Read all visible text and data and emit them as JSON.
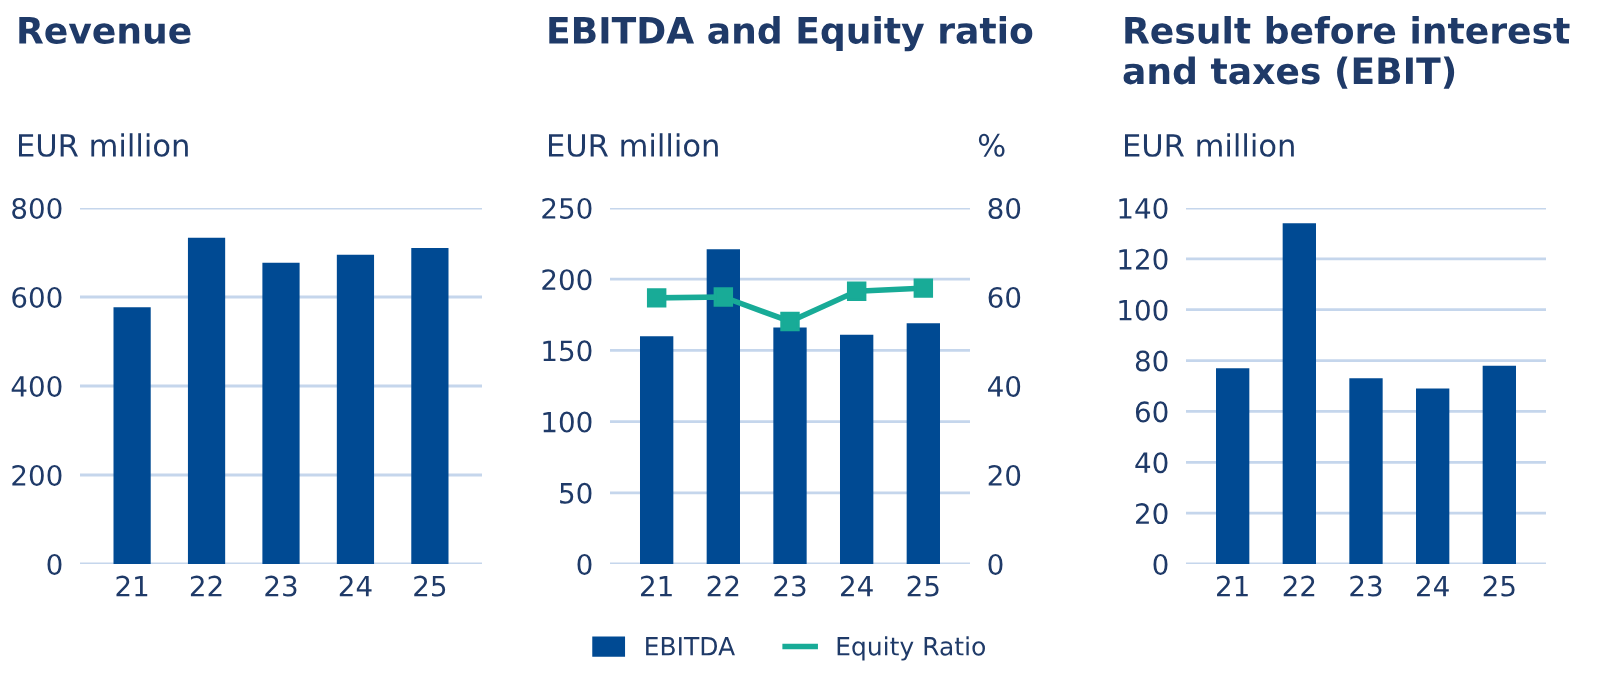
{
  "chart_data": [
    {
      "type": "bar",
      "title": "Revenue",
      "ylabel": "EUR million",
      "categories": [
        "21",
        "22",
        "23",
        "24",
        "25"
      ],
      "series": [
        {
          "color": "#004a93",
          "values": [
            577,
            733,
            677,
            695,
            710
          ]
        }
      ],
      "ylim": [
        0,
        800
      ],
      "yticks": [
        0,
        200,
        400,
        600,
        800
      ],
      "grid": "y",
      "legend": false
    },
    {
      "type": "bar",
      "title": "EBITDA and Equity ratio",
      "ylabel": "EUR million",
      "y2label": "%",
      "categories": [
        "21",
        "22",
        "23",
        "24",
        "25"
      ],
      "series": [
        {
          "name": "EBITDA",
          "color": "#004a93",
          "values": [
            160,
            221,
            166,
            161,
            169
          ]
        },
        {
          "name": "Equity Ratio",
          "type": "line",
          "axis": "y2",
          "color": "#18ab97",
          "marker": "square",
          "values": [
            59.8,
            60,
            54.5,
            61.3,
            62
          ]
        }
      ],
      "ylim": [
        0,
        250
      ],
      "yticks": [
        0,
        50,
        100,
        150,
        200,
        250
      ],
      "y2lim": [
        0,
        80
      ],
      "y2ticks": [
        0,
        20,
        40,
        60,
        80
      ],
      "grid": "y",
      "legend": "bottom"
    },
    {
      "type": "bar",
      "title": "Result before interest and taxes (EBIT)",
      "ylabel": "EUR million",
      "categories": [
        "21",
        "22",
        "23",
        "24",
        "25"
      ],
      "series": [
        {
          "color": "#004a93",
          "values": [
            77,
            134,
            73,
            69,
            78
          ]
        }
      ],
      "ylim": [
        0,
        140
      ],
      "yticks": [
        0,
        20,
        40,
        60,
        80,
        100,
        120,
        140
      ],
      "grid": "y",
      "legend": false
    }
  ]
}
